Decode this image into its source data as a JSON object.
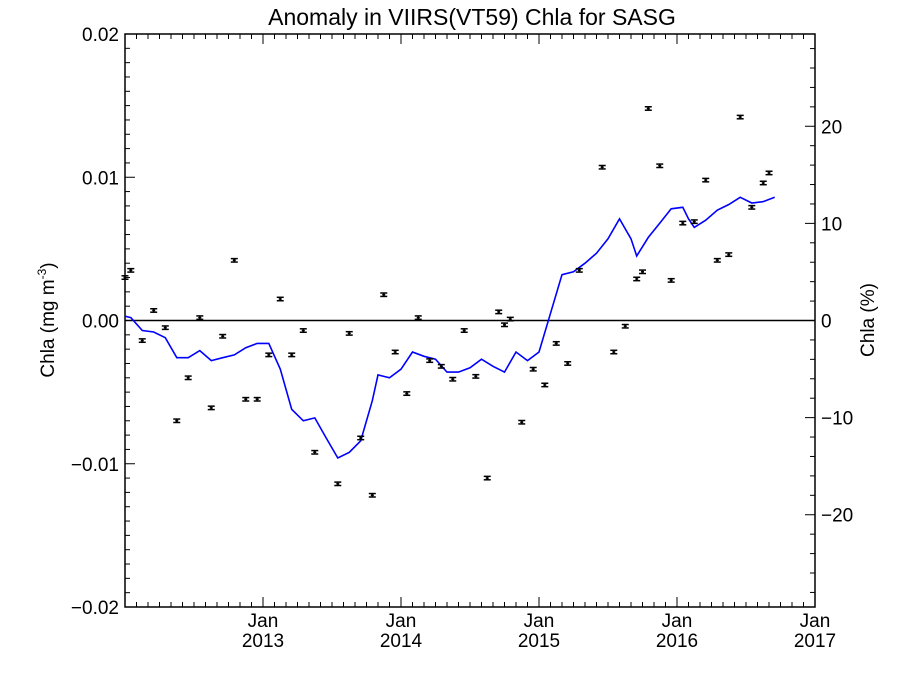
{
  "chart_data": {
    "type": "scatter",
    "title": "Anomaly in VIIRS(VT59) Chla for SASG",
    "ylabel_left": {
      "text": "Chla (mg m",
      "sup": "-3",
      "close": ")"
    },
    "ylabel_right": "Chla (%)",
    "grid": false,
    "legend": "none",
    "xlim": [
      2012.0,
      2017.0
    ],
    "ylim_left": [
      -0.02,
      0.02
    ],
    "ylim_right": [
      -29.5,
      29.5
    ],
    "x_ticks": [
      {
        "x": 2013.0,
        "month": "Jan",
        "year": "2013"
      },
      {
        "x": 2014.0,
        "month": "Jan",
        "year": "2014"
      },
      {
        "x": 2015.0,
        "month": "Jan",
        "year": "2015"
      },
      {
        "x": 2016.0,
        "month": "Jan",
        "year": "2016"
      },
      {
        "x": 2017.0,
        "month": "Jan",
        "year": "2017"
      }
    ],
    "y_ticks_left": [
      {
        "v": 0.02,
        "label": "0.02"
      },
      {
        "v": 0.01,
        "label": "0.01"
      },
      {
        "v": 0.0,
        "label": "0.00"
      },
      {
        "v": -0.01,
        "label": "−0.01"
      },
      {
        "v": -0.02,
        "label": "−0.02"
      }
    ],
    "y_ticks_right": [
      {
        "v": 20,
        "label": "20"
      },
      {
        "v": 10,
        "label": "10"
      },
      {
        "v": 0,
        "label": "0"
      },
      {
        "v": -10,
        "label": "−10"
      },
      {
        "v": -20,
        "label": "−20"
      }
    ],
    "zero_line": 0,
    "colors": {
      "points": "#000000",
      "line": "#0000ff",
      "axes": "#000000"
    },
    "series": [
      {
        "kind": "points_with_errorbars",
        "axis": "left",
        "error": 0.00012,
        "points": [
          [
            2012.0,
            0.003
          ],
          [
            2012.042,
            0.0035
          ],
          [
            2012.125,
            -0.0014
          ],
          [
            2012.208,
            0.0007
          ],
          [
            2012.292,
            -0.0005
          ],
          [
            2012.375,
            -0.007
          ],
          [
            2012.458,
            -0.004
          ],
          [
            2012.542,
            0.0002
          ],
          [
            2012.625,
            -0.0061
          ],
          [
            2012.708,
            -0.0011
          ],
          [
            2012.792,
            0.0042
          ],
          [
            2012.875,
            -0.0055
          ],
          [
            2012.958,
            -0.0055
          ],
          [
            2013.042,
            -0.0024
          ],
          [
            2013.125,
            0.0015
          ],
          [
            2013.208,
            -0.0024
          ],
          [
            2013.292,
            -0.0007
          ],
          [
            2013.375,
            -0.0092
          ],
          [
            2013.542,
            -0.0114
          ],
          [
            2013.625,
            -0.0009
          ],
          [
            2013.708,
            -0.0082
          ],
          [
            2013.792,
            -0.0122
          ],
          [
            2013.875,
            0.0018
          ],
          [
            2013.958,
            -0.0022
          ],
          [
            2014.042,
            -0.0051
          ],
          [
            2014.125,
            0.0002
          ],
          [
            2014.208,
            -0.0028
          ],
          [
            2014.292,
            -0.0032
          ],
          [
            2014.375,
            -0.0041
          ],
          [
            2014.458,
            -0.0007
          ],
          [
            2014.542,
            -0.0039
          ],
          [
            2014.625,
            -0.011
          ],
          [
            2014.708,
            0.0006
          ],
          [
            2014.75,
            -0.0003
          ],
          [
            2014.792,
            0.0001
          ],
          [
            2014.875,
            -0.0071
          ],
          [
            2014.958,
            -0.0034
          ],
          [
            2015.042,
            -0.0045
          ],
          [
            2015.125,
            -0.0016
          ],
          [
            2015.208,
            -0.003
          ],
          [
            2015.292,
            0.0035
          ],
          [
            2015.458,
            0.0107
          ],
          [
            2015.542,
            -0.0022
          ],
          [
            2015.625,
            -0.0004
          ],
          [
            2015.708,
            0.0029
          ],
          [
            2015.75,
            0.0034
          ],
          [
            2015.792,
            0.0148
          ],
          [
            2015.875,
            0.0108
          ],
          [
            2015.958,
            0.0028
          ],
          [
            2016.042,
            0.0068
          ],
          [
            2016.125,
            0.0069
          ],
          [
            2016.208,
            0.0098
          ],
          [
            2016.292,
            0.0042
          ],
          [
            2016.375,
            0.0046
          ],
          [
            2016.458,
            0.0142
          ],
          [
            2016.542,
            0.0079
          ],
          [
            2016.625,
            0.0096
          ],
          [
            2016.667,
            0.0103
          ]
        ]
      },
      {
        "kind": "line",
        "axis": "left",
        "points": [
          [
            2012.0,
            0.0003
          ],
          [
            2012.042,
            0.0002
          ],
          [
            2012.125,
            -0.0007
          ],
          [
            2012.208,
            -0.0008
          ],
          [
            2012.292,
            -0.0012
          ],
          [
            2012.375,
            -0.0026
          ],
          [
            2012.458,
            -0.0026
          ],
          [
            2012.542,
            -0.0021
          ],
          [
            2012.625,
            -0.0028
          ],
          [
            2012.708,
            -0.0026
          ],
          [
            2012.792,
            -0.0024
          ],
          [
            2012.875,
            -0.0019
          ],
          [
            2012.958,
            -0.0016
          ],
          [
            2013.042,
            -0.0016
          ],
          [
            2013.125,
            -0.0034
          ],
          [
            2013.208,
            -0.0062
          ],
          [
            2013.292,
            -0.007
          ],
          [
            2013.375,
            -0.0068
          ],
          [
            2013.458,
            -0.0082
          ],
          [
            2013.542,
            -0.0096
          ],
          [
            2013.625,
            -0.0092
          ],
          [
            2013.708,
            -0.0084
          ],
          [
            2013.792,
            -0.0056
          ],
          [
            2013.833,
            -0.0038
          ],
          [
            2013.917,
            -0.004
          ],
          [
            2014.0,
            -0.0034
          ],
          [
            2014.083,
            -0.0022
          ],
          [
            2014.167,
            -0.0025
          ],
          [
            2014.25,
            -0.0027
          ],
          [
            2014.333,
            -0.0036
          ],
          [
            2014.417,
            -0.0036
          ],
          [
            2014.5,
            -0.0033
          ],
          [
            2014.583,
            -0.0027
          ],
          [
            2014.667,
            -0.0032
          ],
          [
            2014.75,
            -0.0036
          ],
          [
            2014.833,
            -0.0022
          ],
          [
            2014.917,
            -0.0028
          ],
          [
            2015.0,
            -0.0022
          ],
          [
            2015.083,
            0.0005
          ],
          [
            2015.167,
            0.0032
          ],
          [
            2015.25,
            0.0034
          ],
          [
            2015.333,
            0.004
          ],
          [
            2015.417,
            0.0047
          ],
          [
            2015.5,
            0.0057
          ],
          [
            2015.583,
            0.0071
          ],
          [
            2015.667,
            0.0057
          ],
          [
            2015.708,
            0.0045
          ],
          [
            2015.792,
            0.0058
          ],
          [
            2015.875,
            0.0068
          ],
          [
            2015.958,
            0.0078
          ],
          [
            2016.042,
            0.0079
          ],
          [
            2016.083,
            0.0071
          ],
          [
            2016.125,
            0.0065
          ],
          [
            2016.208,
            0.007
          ],
          [
            2016.292,
            0.0077
          ],
          [
            2016.375,
            0.0081
          ],
          [
            2016.458,
            0.0086
          ],
          [
            2016.542,
            0.0082
          ],
          [
            2016.625,
            0.0083
          ],
          [
            2016.708,
            0.0086
          ]
        ]
      }
    ]
  }
}
